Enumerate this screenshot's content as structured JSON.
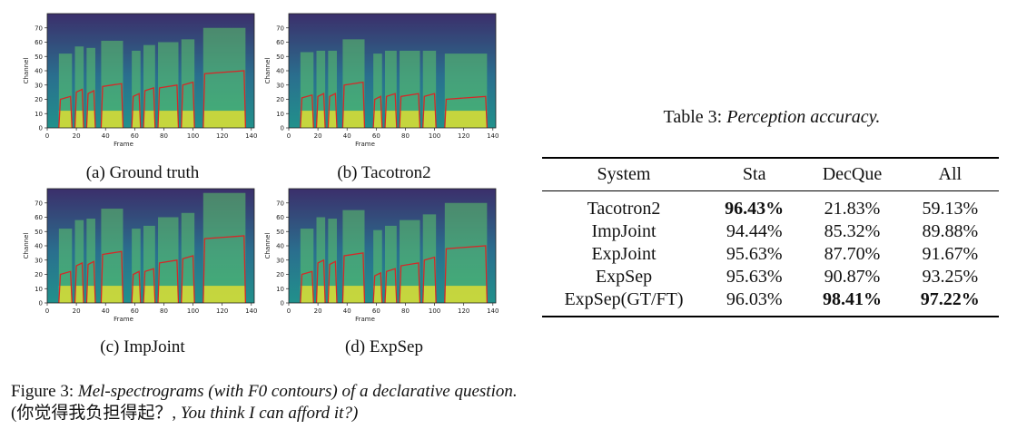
{
  "panels": [
    {
      "caption": "(a) Ground truth",
      "xlabel": "Frame",
      "ylabel": "Channel"
    },
    {
      "caption": "(b) Tacotron2",
      "xlabel": "Frame",
      "ylabel": "Channel"
    },
    {
      "caption": "(c) ImpJoint",
      "xlabel": "Frame",
      "ylabel": "Channel"
    },
    {
      "caption": "(d) ExpSep",
      "xlabel": "Frame",
      "ylabel": "Channel"
    }
  ],
  "axis_ticks": {
    "x": [
      "0",
      "20",
      "40",
      "60",
      "80",
      "100",
      "120",
      "140"
    ],
    "y": [
      "0",
      "10",
      "20",
      "30",
      "40",
      "50",
      "60",
      "70"
    ]
  },
  "figure_caption": {
    "prefix": "Figure 3: ",
    "italic_1": "Mel-spectrograms (with F0 contours) of a declarative question.",
    "plain_1": " (你觉得我负担得起？, ",
    "italic_2": "You think I can afford it?)"
  },
  "table_caption": {
    "prefix": "Table 3: ",
    "italic": "Perception accuracy."
  },
  "table": {
    "headers": [
      "System",
      "Sta",
      "DecQue",
      "All"
    ],
    "rows": [
      {
        "system": "Tacotron2",
        "sta": "96.43%",
        "decque": "21.83%",
        "all": "59.13%"
      },
      {
        "system": "ImpJoint",
        "sta": "94.44%",
        "decque": "85.32%",
        "all": "89.88%"
      },
      {
        "system": "ExpJoint",
        "sta": "95.63%",
        "decque": "87.70%",
        "all": "91.67%"
      },
      {
        "system": "ExpSep",
        "sta": "95.63%",
        "decque": "90.87%",
        "all": "93.25%"
      },
      {
        "system": "ExpSep(GT/FT)",
        "sta": "96.03%",
        "decque": "98.41%",
        "all": "97.22%"
      }
    ]
  },
  "colors": {
    "spectrogram_low": "#3b2f6b",
    "spectrogram_mid": "#21918c",
    "spectrogram_high": "#fde725",
    "f0_contour": "#d62728"
  }
}
